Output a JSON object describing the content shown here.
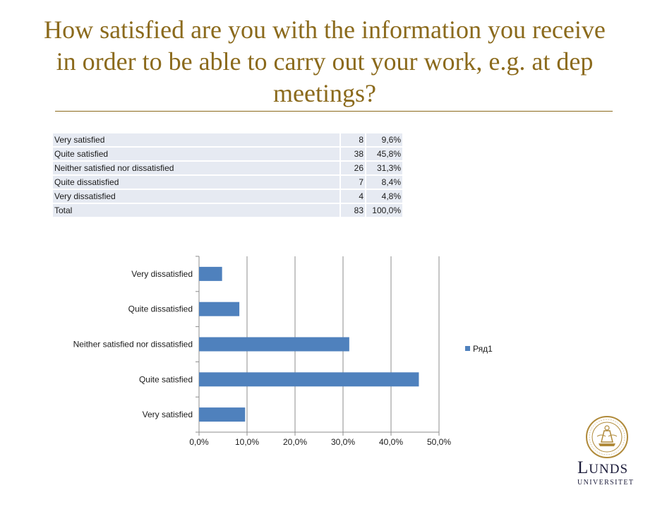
{
  "title": "How satisfied are you with the information you receive in order to be able to carry out your work, e.g. at dep meetings?",
  "table": {
    "rows": [
      {
        "label": "Very satisfied",
        "count": "8",
        "pct": "9,6%"
      },
      {
        "label": "Quite satisfied",
        "count": "38",
        "pct": "45,8%"
      },
      {
        "label": "Neither satisfied nor dissatisfied",
        "count": "26",
        "pct": "31,3%"
      },
      {
        "label": "Quite dissatisfied",
        "count": "7",
        "pct": "8,4%"
      },
      {
        "label": "Very dissatisfied",
        "count": "4",
        "pct": "4,8%"
      },
      {
        "label": "Total",
        "count": "83",
        "pct": "100,0%"
      }
    ]
  },
  "chart_data": {
    "type": "bar",
    "orientation": "horizontal",
    "categories": [
      "Very satisfied",
      "Quite satisfied",
      "Neither satisfied nor dissatisfied",
      "Quite dissatisfied",
      "Very dissatisfied"
    ],
    "series": [
      {
        "name": "Ряд1",
        "values": [
          9.6,
          45.8,
          31.3,
          8.4,
          4.8
        ],
        "color": "#4f81bd"
      }
    ],
    "xlim": [
      0,
      50
    ],
    "xticks": [
      "0,0%",
      "10,0%",
      "20,0%",
      "30,0%",
      "40,0%",
      "50,0%"
    ],
    "grid": "vertical",
    "legend": "right"
  },
  "logo": {
    "name_first": "L",
    "name_rest": "UNDS",
    "sub": "UNIVERSITET",
    "seal_text": "CAROLINA · SIGILLUM · ACADEMIAE · 1666"
  }
}
